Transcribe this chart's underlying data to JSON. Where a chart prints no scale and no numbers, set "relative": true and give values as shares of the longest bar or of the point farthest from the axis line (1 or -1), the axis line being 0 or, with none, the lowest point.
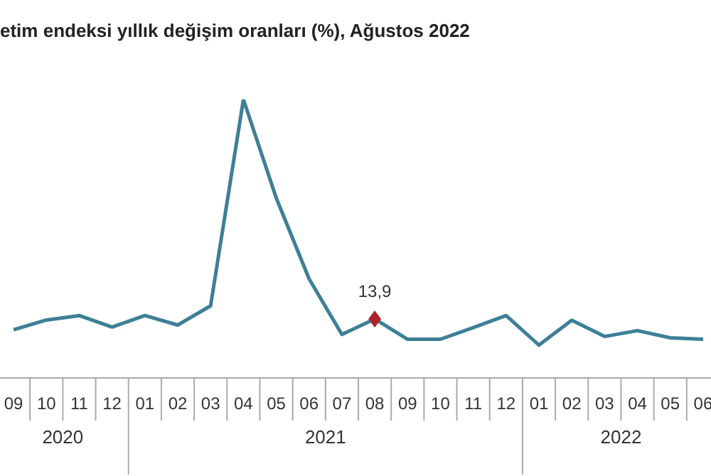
{
  "chart_data": {
    "type": "line",
    "title": "etim endeksi yıllık değişim oranları (%), Ağustos 2022",
    "relative": true,
    "categories": [
      "09",
      "10",
      "11",
      "12",
      "01",
      "02",
      "03",
      "04",
      "05",
      "06",
      "07",
      "08",
      "09",
      "10",
      "11",
      "12",
      "01",
      "02",
      "03",
      "04",
      "05",
      "06"
    ],
    "annotations": [
      "2020",
      "2021",
      "2022",
      {
        "text": "13,9",
        "x": "08",
        "y": 0.212
      }
    ],
    "series": [
      {
        "color": "#3d7f97",
        "marker": "none",
        "values": [
          0.173,
          0.208,
          0.224,
          0.183,
          0.224,
          0.19,
          0.259,
          1,
          0.646,
          0.356,
          0.156,
          0.212,
          0.139,
          0.139,
          0.181,
          0.224,
          0.118,
          0.207,
          0.149,
          0.17,
          0.144,
          0.139
        ]
      },
      {
        "type": "scatter",
        "color": "#b0202a",
        "marker": "diamond",
        "values": [
          null,
          null,
          null,
          null,
          null,
          null,
          null,
          null,
          null,
          null,
          null,
          0.212,
          null,
          null,
          null,
          null,
          null,
          null,
          null,
          null,
          null,
          null
        ]
      }
    ],
    "grid": false,
    "legend": false
  }
}
